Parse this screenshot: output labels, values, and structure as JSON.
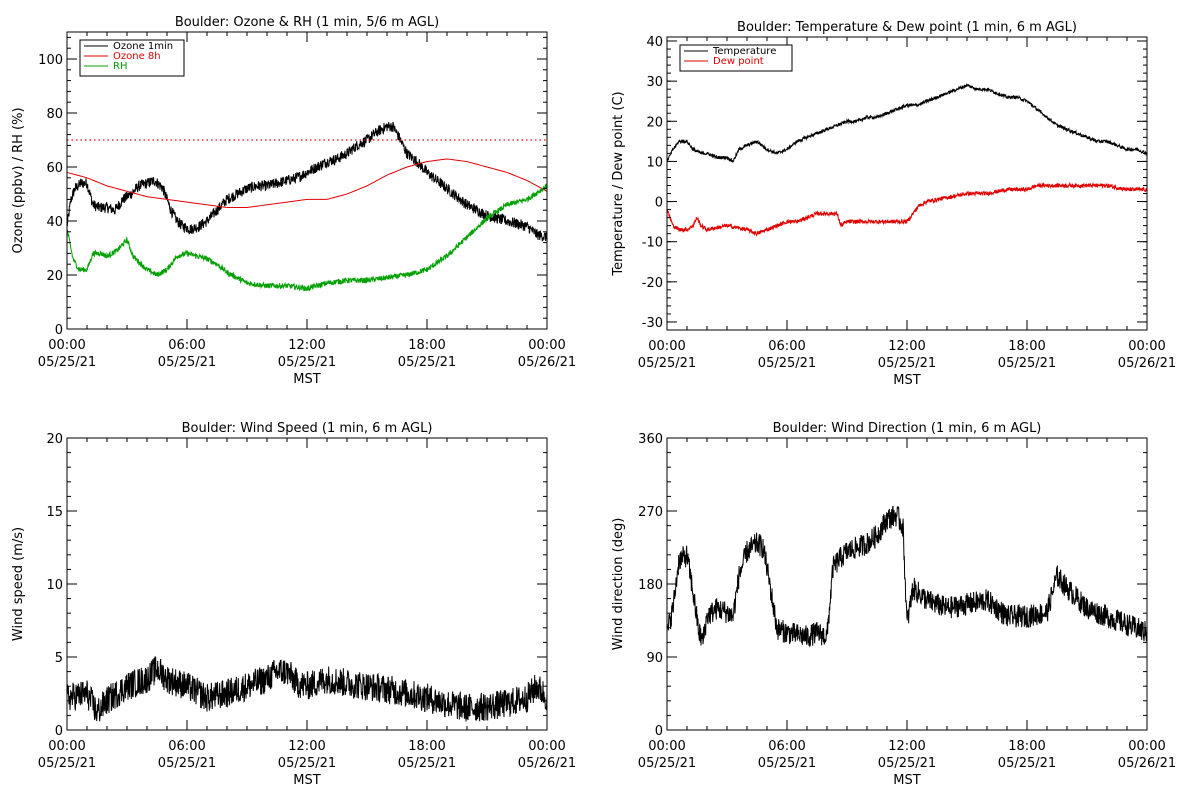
{
  "chart_data": [
    {
      "type": "line",
      "title": "Boulder: Ozone & RH (1 min, 5/6 m AGL)",
      "xlabel": "MST",
      "ylabel": "Ozone (ppbv) / RH (%)",
      "xlim": [
        0,
        24
      ],
      "ylim": [
        0,
        110
      ],
      "x_ticks": [
        {
          "value": 0,
          "time": "00:00",
          "date": "05/25/21"
        },
        {
          "value": 6,
          "time": "06:00",
          "date": "05/25/21"
        },
        {
          "value": 12,
          "time": "12:00",
          "date": "05/25/21"
        },
        {
          "value": 18,
          "time": "18:00",
          "date": "05/25/21"
        },
        {
          "value": 24,
          "time": "00:00",
          "date": "05/26/21"
        }
      ],
      "y_ticks": [
        0,
        20,
        40,
        60,
        80,
        100
      ],
      "grid": false,
      "legend": "top-left",
      "reference_line": {
        "y": 70,
        "color": "#e00000",
        "style": "dotted"
      },
      "series": [
        {
          "name": "Ozone 1min",
          "color": "#000000",
          "noise": 2.0,
          "x": [
            0,
            0.2,
            0.4,
            0.7,
            1.0,
            1.3,
            1.6,
            2.0,
            2.4,
            2.8,
            3.2,
            3.6,
            4.0,
            4.4,
            4.8,
            5.2,
            5.5,
            5.8,
            6.2,
            6.6,
            7.0,
            7.5,
            8.0,
            8.5,
            9.0,
            9.5,
            10.0,
            10.5,
            11.0,
            11.5,
            12.0,
            12.5,
            13.0,
            13.5,
            14.0,
            14.5,
            15.0,
            15.5,
            16.0,
            16.3,
            16.6,
            17.0,
            17.5,
            18.0,
            18.5,
            19.0,
            19.5,
            20.0,
            20.5,
            21.0,
            21.5,
            22.0,
            22.5,
            23.0,
            23.5,
            24.0
          ],
          "y": [
            38,
            48,
            52,
            54,
            54,
            46,
            45,
            45,
            44,
            48,
            50,
            53,
            54,
            55,
            52,
            44,
            40,
            38,
            37,
            38,
            40,
            44,
            48,
            50,
            52,
            53,
            53,
            54,
            55,
            56,
            58,
            60,
            62,
            63,
            65,
            68,
            70,
            73,
            75,
            75,
            71,
            65,
            62,
            58,
            55,
            52,
            49,
            46,
            44,
            42,
            41,
            40,
            39,
            38,
            35,
            34
          ]
        },
        {
          "name": "Ozone 8h",
          "color": "#e00000",
          "noise": 0,
          "x": [
            0,
            1,
            2,
            3,
            4,
            5,
            6,
            7,
            8,
            9,
            10,
            11,
            12,
            13,
            14,
            15,
            16,
            17,
            18,
            19,
            20,
            21,
            22,
            23,
            24
          ],
          "y": [
            58,
            56,
            53,
            51,
            49,
            48,
            47,
            46,
            45,
            45,
            46,
            47,
            48,
            48,
            50,
            53,
            57,
            60,
            62,
            63,
            62,
            60,
            58,
            55,
            51
          ]
        },
        {
          "name": "RH",
          "color": "#00a000",
          "noise": 1.0,
          "x": [
            0,
            0.3,
            0.6,
            1.0,
            1.3,
            1.7,
            2.0,
            2.5,
            3.0,
            3.3,
            3.7,
            4.0,
            4.5,
            5.0,
            5.5,
            6.0,
            6.5,
            7.0,
            7.5,
            8.0,
            8.5,
            9.0,
            10.0,
            11.0,
            12.0,
            13.0,
            14.0,
            15.0,
            16.0,
            17.0,
            18.0,
            19.0,
            20.0,
            21.0,
            22.0,
            23.0,
            24.0
          ],
          "y": [
            37,
            26,
            22,
            22,
            28,
            28,
            27,
            29,
            33,
            27,
            24,
            22,
            20,
            22,
            27,
            28,
            27,
            26,
            24,
            21,
            19,
            17,
            16,
            16,
            15,
            17,
            18,
            18,
            19,
            20,
            22,
            27,
            34,
            41,
            46,
            48,
            53
          ]
        }
      ]
    },
    {
      "type": "line",
      "title": "Boulder: Temperature & Dew point (1 min, 6 m AGL)",
      "xlabel": "MST",
      "ylabel": "Temperature / Dew point (C)",
      "xlim": [
        0,
        24
      ],
      "ylim": [
        -32,
        41
      ],
      "x_ticks": [
        {
          "value": 0,
          "time": "00:00",
          "date": "05/25/21"
        },
        {
          "value": 6,
          "time": "06:00",
          "date": "05/25/21"
        },
        {
          "value": 12,
          "time": "12:00",
          "date": "05/25/21"
        },
        {
          "value": 18,
          "time": "18:00",
          "date": "05/25/21"
        },
        {
          "value": 24,
          "time": "00:00",
          "date": "05/26/21"
        }
      ],
      "y_ticks": [
        -30,
        -20,
        -10,
        0,
        10,
        20,
        30,
        40
      ],
      "grid": false,
      "legend": "top-left",
      "series": [
        {
          "name": "Temperature",
          "color": "#000000",
          "noise": 0.4,
          "x": [
            0,
            0.3,
            0.6,
            1.0,
            1.3,
            1.7,
            2.0,
            2.5,
            3.0,
            3.3,
            3.6,
            4.0,
            4.5,
            5.0,
            5.5,
            6.0,
            6.5,
            7.0,
            7.5,
            8.0,
            8.5,
            9.0,
            9.5,
            10.0,
            10.5,
            11.0,
            11.5,
            12.0,
            12.5,
            13.0,
            13.5,
            14.0,
            14.5,
            15.0,
            15.5,
            16.0,
            16.5,
            17.0,
            17.5,
            18.0,
            18.5,
            19.0,
            19.5,
            20.0,
            20.5,
            21.0,
            21.5,
            22.0,
            22.5,
            23.0,
            23.5,
            24.0
          ],
          "y": [
            10,
            13,
            15,
            15,
            13,
            12,
            12,
            11,
            11,
            10,
            13,
            14,
            15,
            13,
            12,
            13,
            15,
            16,
            17,
            18,
            19,
            20,
            20,
            21,
            21,
            22,
            23,
            24,
            24,
            25,
            26,
            27,
            28,
            29,
            28,
            28,
            27,
            26,
            26,
            25,
            23,
            21,
            19,
            18,
            17,
            16,
            15,
            15,
            14,
            13,
            13,
            12
          ]
        },
        {
          "name": "Dew point",
          "color": "#e00000",
          "noise": 0.5,
          "x": [
            0,
            0.3,
            0.6,
            1.0,
            1.3,
            1.5,
            1.7,
            2.0,
            3.0,
            4.0,
            4.5,
            5.0,
            5.5,
            6.0,
            6.5,
            7.0,
            7.5,
            8.0,
            8.5,
            8.7,
            9.0,
            10.0,
            11.0,
            12.0,
            12.3,
            12.6,
            13.0,
            14.0,
            15.0,
            16.0,
            17.0,
            18.0,
            18.5,
            19.0,
            20.0,
            21.0,
            22.0,
            23.0,
            24.0
          ],
          "y": [
            -2,
            -6,
            -7,
            -7,
            -6,
            -4,
            -6,
            -7,
            -6,
            -7,
            -8,
            -7,
            -6,
            -5,
            -5,
            -4,
            -3,
            -3,
            -3,
            -6,
            -5,
            -5,
            -5,
            -5,
            -3,
            -1,
            0,
            1,
            2,
            2,
            3,
            3,
            4,
            4,
            4,
            4,
            4,
            3,
            3
          ]
        }
      ]
    },
    {
      "type": "line",
      "title": "Boulder: Wind Speed (1 min, 6 m AGL)",
      "xlabel": "MST",
      "ylabel": "Wind speed (m/s)",
      "xlim": [
        0,
        24
      ],
      "ylim": [
        0,
        20
      ],
      "x_ticks": [
        {
          "value": 0,
          "time": "00:00",
          "date": "05/25/21"
        },
        {
          "value": 6,
          "time": "06:00",
          "date": "05/25/21"
        },
        {
          "value": 12,
          "time": "12:00",
          "date": "05/25/21"
        },
        {
          "value": 18,
          "time": "18:00",
          "date": "05/25/21"
        },
        {
          "value": 24,
          "time": "00:00",
          "date": "05/26/21"
        }
      ],
      "y_ticks": [
        0,
        5,
        10,
        15,
        20
      ],
      "grid": false,
      "legend": "none",
      "series": [
        {
          "name": "",
          "color": "#000000",
          "noise": 1.0,
          "x": [
            0,
            1,
            1.5,
            2,
            3,
            4,
            4.5,
            5,
            6,
            7,
            8,
            9,
            10,
            10.5,
            11,
            11.5,
            12,
            13,
            14,
            15,
            16,
            17,
            18,
            19,
            20,
            21,
            22,
            23,
            23.5,
            24
          ],
          "y": [
            2.2,
            2.5,
            1.2,
            2.0,
            3.0,
            3.5,
            4.2,
            3.5,
            3.0,
            2.2,
            2.5,
            3.0,
            3.5,
            4.0,
            4.0,
            3.2,
            3.0,
            3.5,
            3.2,
            3.0,
            2.8,
            2.5,
            2.2,
            1.8,
            1.5,
            1.6,
            1.8,
            2.2,
            3.0,
            2.2
          ]
        }
      ]
    },
    {
      "type": "line",
      "title": "Boulder: Wind Direction (1 min, 6 m AGL)",
      "xlabel": "MST",
      "ylabel": "Wind direction (deg)",
      "xlim": [
        0,
        24
      ],
      "ylim": [
        0,
        360
      ],
      "x_ticks": [
        {
          "value": 0,
          "time": "00:00",
          "date": "05/25/21"
        },
        {
          "value": 6,
          "time": "06:00",
          "date": "05/25/21"
        },
        {
          "value": 12,
          "time": "12:00",
          "date": "05/25/21"
        },
        {
          "value": 18,
          "time": "18:00",
          "date": "05/25/21"
        },
        {
          "value": 24,
          "time": "00:00",
          "date": "05/26/21"
        }
      ],
      "y_ticks": [
        0,
        90,
        180,
        270,
        360
      ],
      "grid": false,
      "legend": "none",
      "series": [
        {
          "name": "",
          "color": "#000000",
          "noise": 14,
          "x": [
            0,
            0.3,
            0.6,
            1.0,
            1.3,
            1.6,
            1.8,
            2.0,
            2.5,
            3.0,
            3.3,
            3.6,
            4.0,
            4.5,
            4.8,
            5.0,
            5.5,
            6.0,
            7.0,
            7.5,
            8.0,
            8.3,
            8.6,
            9.0,
            10.0,
            10.5,
            11.0,
            11.5,
            11.8,
            12.0,
            12.3,
            13.0,
            14.0,
            15.0,
            16.0,
            17.0,
            18.0,
            19.0,
            19.5,
            20.0,
            21.0,
            22.0,
            23.0,
            24.0
          ],
          "y": [
            120,
            150,
            210,
            215,
            170,
            120,
            110,
            140,
            150,
            145,
            140,
            190,
            220,
            230,
            225,
            200,
            125,
            120,
            115,
            120,
            115,
            200,
            210,
            220,
            230,
            240,
            260,
            265,
            250,
            130,
            175,
            160,
            150,
            155,
            160,
            140,
            140,
            145,
            190,
            175,
            150,
            140,
            130,
            120
          ]
        }
      ]
    }
  ]
}
